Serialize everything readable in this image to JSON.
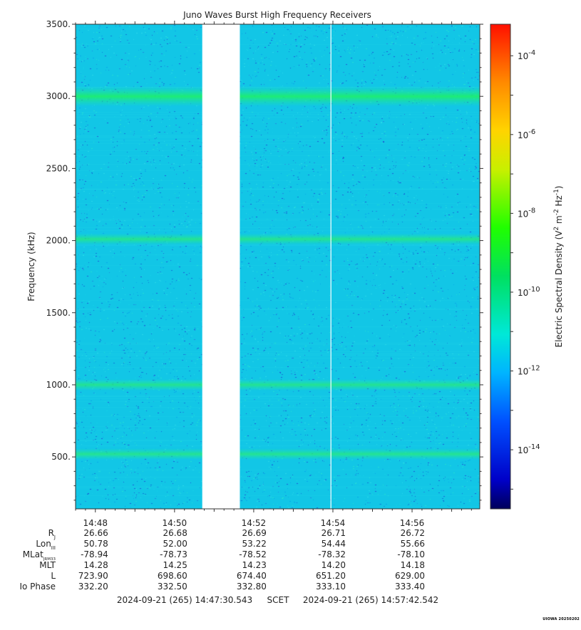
{
  "chart_data": {
    "type": "heatmap",
    "title": "Juno Waves Burst High Frequency Receivers",
    "ylabel": "Frequency (kHz)",
    "ylim": [
      140,
      3500
    ],
    "y_ticks": [
      500,
      1000,
      1500,
      2000,
      2500,
      3000,
      3500
    ],
    "y_tick_labels": [
      "500.",
      "1000.",
      "1500.",
      "2000.",
      "2500.",
      "3000.",
      "3500."
    ],
    "x_tick_labels": [
      "14:48",
      "14:50",
      "14:52",
      "14:54",
      "14:56"
    ],
    "x_tick_minutes": [
      48,
      50,
      52,
      54,
      56
    ],
    "time_range_minutes": [
      47.5,
      57.71
    ],
    "data_gap_minutes": [
      50.7,
      51.65
    ],
    "vertical_line_minute": 53.95,
    "emission_bands_khz": [
      520,
      1000,
      2010,
      3000
    ],
    "colorbar": {
      "label_main": "Electric Spectral Density (V",
      "label_sup1": "2",
      "label_mid": " m",
      "label_sup2": "-2",
      "label_hz": " Hz",
      "label_sup3": "-1",
      "label_end": ")",
      "scale": "log",
      "range_exp": [
        -15.5,
        -3.2
      ],
      "tick_exponents": [
        -4,
        -6,
        -8,
        -10,
        -12,
        -14
      ],
      "tick_base": "10"
    },
    "ephemeris": {
      "rows": [
        {
          "label": "R",
          "sub": "J",
          "values": [
            "26.66",
            "26.68",
            "26.69",
            "26.71",
            "26.72"
          ]
        },
        {
          "label": "Lon",
          "sub": "III",
          "values": [
            "50.78",
            "52.00",
            "53.22",
            "54.44",
            "55.66"
          ]
        },
        {
          "label": "MLat",
          "sub": "JRM33",
          "values": [
            "-78.94",
            "-78.73",
            "-78.52",
            "-78.32",
            "-78.10"
          ]
        },
        {
          "label": "MLT",
          "sub": "",
          "values": [
            "14.28",
            "14.25",
            "14.23",
            "14.20",
            "14.18"
          ]
        },
        {
          "label": "L",
          "sub": "",
          "values": [
            "723.90",
            "698.60",
            "674.40",
            "651.20",
            "629.00"
          ]
        },
        {
          "label": "Io Phase",
          "sub": "",
          "values": [
            "332.20",
            "332.50",
            "332.80",
            "333.10",
            "333.40"
          ]
        }
      ]
    },
    "time_footer": {
      "start": "2024-09-21 (265) 14:47:30.543",
      "scet": "SCET",
      "end": "2024-09-21 (265) 14:57:42.542"
    }
  },
  "stamp": "UIOWA 20250202"
}
